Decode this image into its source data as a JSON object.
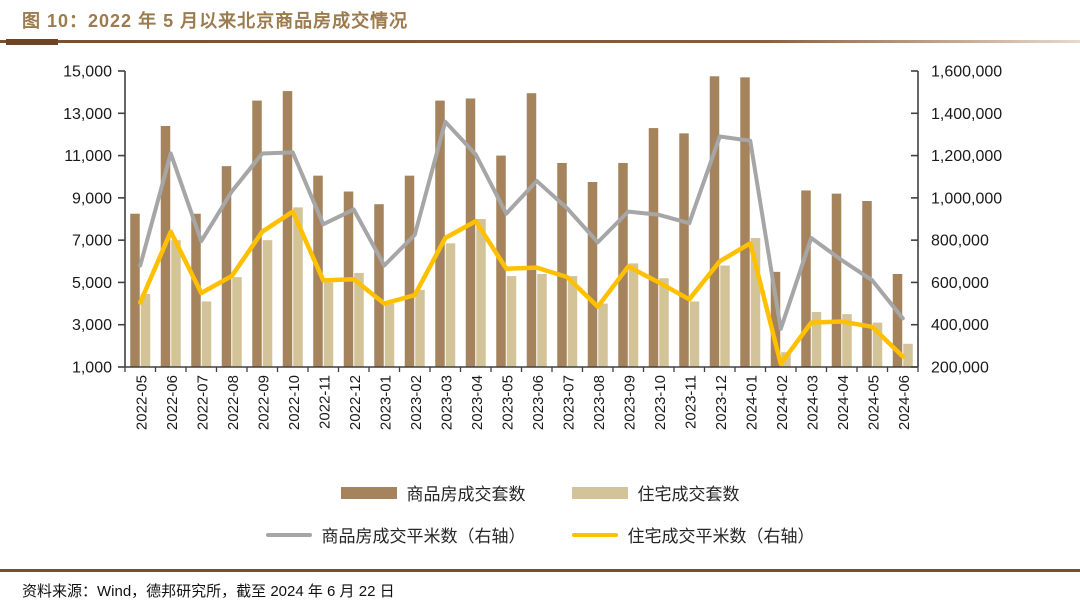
{
  "page": {
    "title": "图 10：2022 年 5 月以来北京商品房成交情况",
    "source_note": "资料来源：Wind，德邦研究所，截至 2024 年 6 月 22 日"
  },
  "colors": {
    "title": "#9C7B4E",
    "rule": "#7B4F2C",
    "axis": "#404040",
    "tick_text": "#1a1a1a",
    "bar_commodity": "#A5835C",
    "bar_residential": "#D3C399",
    "line_commodity_sqm": "#A6A6A6",
    "line_residential_sqm": "#FFC000"
  },
  "chart_data": {
    "type": "bar",
    "subtype": "combo-bar-line-dual-axis",
    "grid": false,
    "legend_position": "bottom",
    "categories": [
      "2022-05",
      "2022-06",
      "2022-07",
      "2022-08",
      "2022-09",
      "2022-10",
      "2022-11",
      "2022-12",
      "2023-01",
      "2023-02",
      "2023-03",
      "2023-04",
      "2023-05",
      "2023-06",
      "2023-07",
      "2023-08",
      "2023-09",
      "2023-10",
      "2023-11",
      "2023-12",
      "2024-01",
      "2024-02",
      "2024-03",
      "2024-04",
      "2024-05",
      "2024-06"
    ],
    "series": [
      {
        "name": "商品房成交套数",
        "type": "bar",
        "axis": "left",
        "color": "#A5835C",
        "values": [
          8250,
          12400,
          8250,
          10500,
          13600,
          14050,
          10050,
          9300,
          8700,
          10050,
          13600,
          13700,
          11000,
          13950,
          10650,
          9750,
          10650,
          12300,
          12050,
          14750,
          14700,
          5500,
          9350,
          9200,
          8850,
          5400
        ]
      },
      {
        "name": "住宅成交套数",
        "type": "bar",
        "axis": "left",
        "color": "#D3C399",
        "values": [
          4450,
          7000,
          4100,
          5250,
          7000,
          8550,
          5000,
          5450,
          4000,
          4650,
          6850,
          8000,
          5300,
          5400,
          5300,
          4000,
          5900,
          5200,
          4100,
          5800,
          7100,
          1700,
          3600,
          3500,
          3100,
          2100
        ]
      },
      {
        "name": "商品房成交平米数（右轴）",
        "type": "line",
        "axis": "right",
        "color": "#A6A6A6",
        "values": [
          680000,
          1210000,
          795000,
          1030000,
          1210000,
          1215000,
          875000,
          945000,
          680000,
          825000,
          1360000,
          1205000,
          925000,
          1080000,
          950000,
          790000,
          935000,
          920000,
          880000,
          1290000,
          1270000,
          380000,
          810000,
          705000,
          610000,
          430000
        ]
      },
      {
        "name": "住宅成交平米数（右轴）",
        "type": "line",
        "axis": "right",
        "color": "#FFC000",
        "values": [
          505000,
          840000,
          550000,
          630000,
          840000,
          935000,
          610000,
          615000,
          500000,
          540000,
          810000,
          890000,
          665000,
          670000,
          625000,
          485000,
          675000,
          600000,
          520000,
          700000,
          785000,
          215000,
          410000,
          415000,
          390000,
          250000
        ]
      }
    ],
    "left_axis": {
      "min": 1000,
      "max": 15000,
      "step": 2000,
      "ticks": [
        "1,000",
        "3,000",
        "5,000",
        "7,000",
        "9,000",
        "11,000",
        "13,000",
        "15,000"
      ]
    },
    "right_axis": {
      "min": 200000,
      "max": 1600000,
      "step": 200000,
      "ticks": [
        "200,000",
        "400,000",
        "600,000",
        "800,000",
        "1,000,000",
        "1,200,000",
        "1,400,000",
        "1,600,000"
      ]
    }
  }
}
